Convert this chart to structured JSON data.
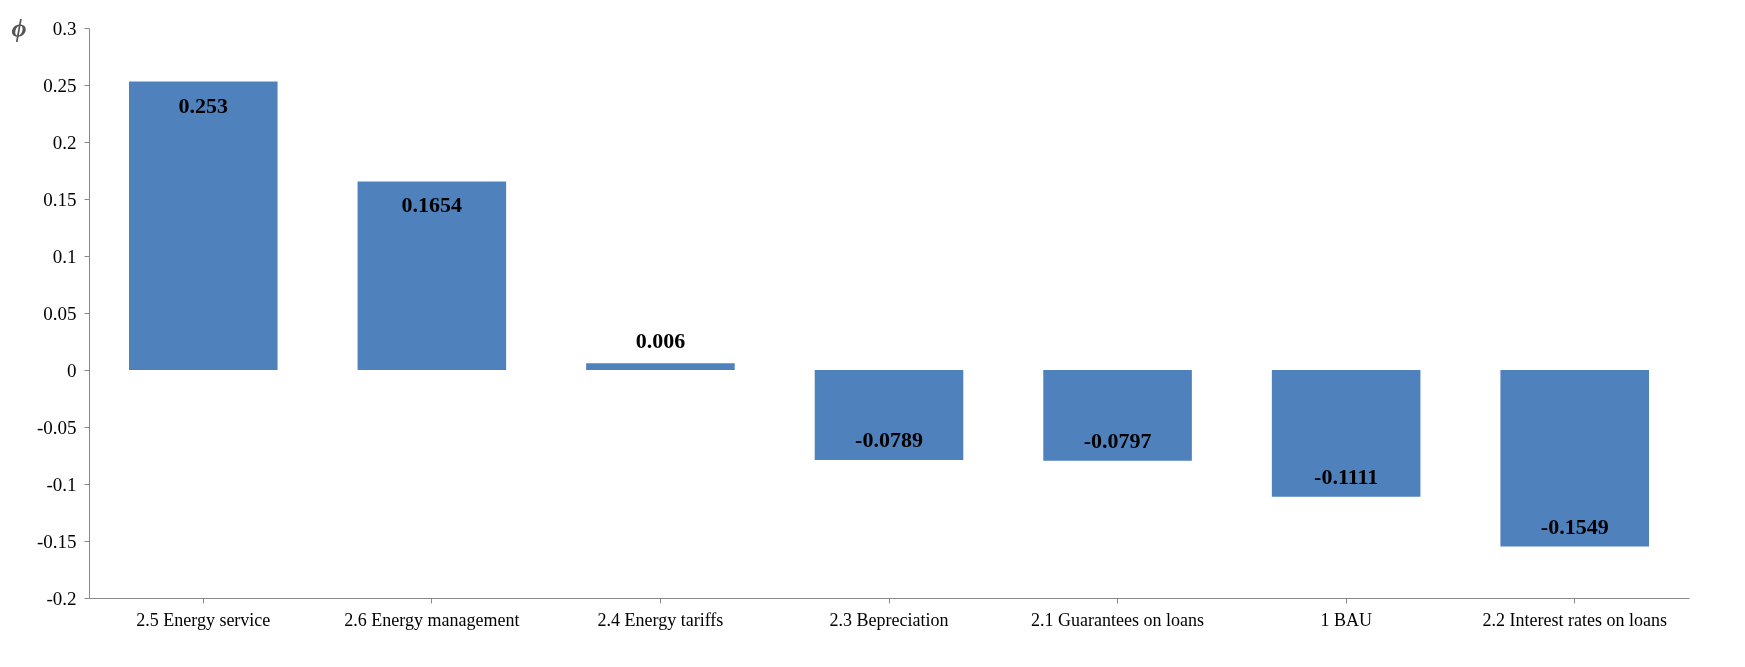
{
  "chart_data": {
    "type": "bar",
    "ylabel": "ϕ",
    "categories": [
      "2.5 Energy service",
      "2.6 Energy management",
      "2.4 Energy tariffs",
      "2.3 Bepreciation",
      "2.1 Guarantees on loans",
      "1 BAU",
      "2.2 Interest rates on loans"
    ],
    "values": [
      0.253,
      0.1654,
      0.006,
      -0.0789,
      -0.0797,
      -0.1111,
      -0.1549
    ],
    "color": "#4f81bd",
    "ylim": [
      -0.2,
      0.3
    ],
    "yticks": [
      -0.2,
      -0.15,
      -0.1,
      -0.05,
      0,
      0.05,
      0.1,
      0.15,
      0.2,
      0.25,
      0.3
    ],
    "grid": false,
    "data_labels": true
  }
}
